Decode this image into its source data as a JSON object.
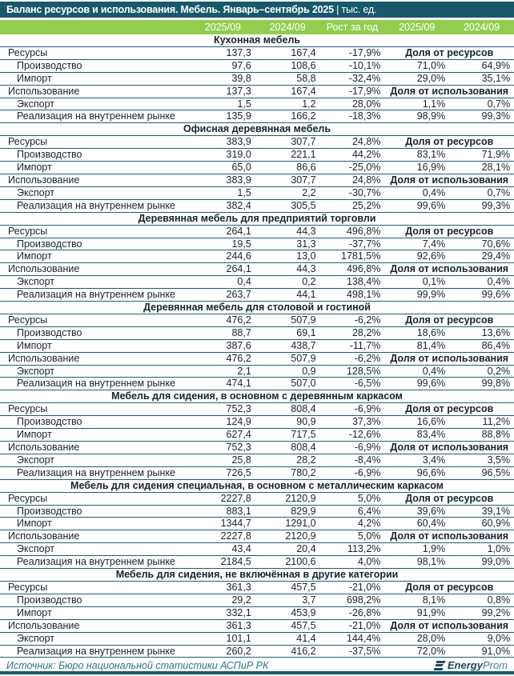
{
  "title": "Баланс ресурсов и использования. Мебель. Январь–сентябрь 2025",
  "title_units": "| тыс. ед.",
  "columns": [
    "2025/09",
    "2024/09",
    "Рост за год",
    "2025/09",
    "2024/09"
  ],
  "sections": [
    {
      "name": "Кухонная мебель",
      "rows": [
        {
          "label": "Ресурсы",
          "indent": false,
          "values": [
            "137,3",
            "167,4",
            "-17,9%"
          ],
          "span": "Доля от ресурсов"
        },
        {
          "label": "Производство",
          "indent": true,
          "values": [
            "97,6",
            "108,6",
            "-10,1%",
            "71,0%",
            "64,9%"
          ]
        },
        {
          "label": "Импорт",
          "indent": true,
          "values": [
            "39,8",
            "58,8",
            "-32,4%",
            "29,0%",
            "35,1%"
          ]
        },
        {
          "label": "Использование",
          "indent": false,
          "values": [
            "137,3",
            "167,4",
            "-17,9%"
          ],
          "span": "Доля от использования"
        },
        {
          "label": "Экспорт",
          "indent": true,
          "values": [
            "1,5",
            "1,2",
            "28,0%",
            "1,1%",
            "0,7%"
          ]
        },
        {
          "label": "Реализация на внутреннем рынке",
          "indent": true,
          "values": [
            "135,9",
            "166,2",
            "-18,3%",
            "98,9%",
            "99,3%"
          ]
        }
      ]
    },
    {
      "name": "Офисная деревянная мебель",
      "rows": [
        {
          "label": "Ресурсы",
          "indent": false,
          "values": [
            "383,9",
            "307,7",
            "24,8%"
          ],
          "span": "Доля от ресурсов"
        },
        {
          "label": "Производство",
          "indent": true,
          "values": [
            "319,0",
            "221,1",
            "44,2%",
            "83,1%",
            "71,9%"
          ]
        },
        {
          "label": "Импорт",
          "indent": true,
          "values": [
            "65,0",
            "86,6",
            "-25,0%",
            "16,9%",
            "28,1%"
          ]
        },
        {
          "label": "Использование",
          "indent": false,
          "values": [
            "383,9",
            "307,7",
            "24,8%"
          ],
          "span": "Доля от использования"
        },
        {
          "label": "Экспорт",
          "indent": true,
          "values": [
            "1,5",
            "2,2",
            "-30,7%",
            "0,4%",
            "0,7%"
          ]
        },
        {
          "label": "Реализация на внутреннем рынке",
          "indent": true,
          "values": [
            "382,4",
            "305,5",
            "25,2%",
            "99,6%",
            "99,3%"
          ]
        }
      ]
    },
    {
      "name": "Деревянная мебель для предприятий торговли",
      "rows": [
        {
          "label": "Ресурсы",
          "indent": false,
          "values": [
            "264,1",
            "44,3",
            "496,8%"
          ],
          "span": "Доля от ресурсов"
        },
        {
          "label": "Производство",
          "indent": true,
          "values": [
            "19,5",
            "31,3",
            "-37,7%",
            "7,4%",
            "70,6%"
          ]
        },
        {
          "label": "Импорт",
          "indent": true,
          "values": [
            "244,6",
            "13,0",
            "1781,5%",
            "92,6%",
            "29,4%"
          ]
        },
        {
          "label": "Использование",
          "indent": false,
          "values": [
            "264,1",
            "44,3",
            "496,8%"
          ],
          "span": "Доля от использования"
        },
        {
          "label": "Экспорт",
          "indent": true,
          "values": [
            "0,4",
            "0,2",
            "138,4%",
            "0,1%",
            "0,4%"
          ]
        },
        {
          "label": "Реализация на внутреннем рынке",
          "indent": true,
          "values": [
            "263,7",
            "44,1",
            "498,1%",
            "99,9%",
            "99,6%"
          ]
        }
      ]
    },
    {
      "name": "Деревянная мебель для столовой и гостиной",
      "rows": [
        {
          "label": "Ресурсы",
          "indent": false,
          "values": [
            "476,2",
            "507,9",
            "-6,2%"
          ],
          "span": "Доля от ресурсов"
        },
        {
          "label": "Производство",
          "indent": true,
          "values": [
            "88,7",
            "69,1",
            "28,2%",
            "18,6%",
            "13,6%"
          ]
        },
        {
          "label": "Импорт",
          "indent": true,
          "values": [
            "387,6",
            "438,7",
            "-11,7%",
            "81,4%",
            "86,4%"
          ]
        },
        {
          "label": "Использование",
          "indent": false,
          "values": [
            "476,2",
            "507,9",
            "-6,2%"
          ],
          "span": "Доля от использования"
        },
        {
          "label": "Экспорт",
          "indent": true,
          "values": [
            "2,1",
            "0,9",
            "128,5%",
            "0,4%",
            "0,2%"
          ]
        },
        {
          "label": "Реализация на внутреннем рынке",
          "indent": true,
          "values": [
            "474,1",
            "507,0",
            "-6,5%",
            "99,6%",
            "99,8%"
          ]
        }
      ]
    },
    {
      "name": "Мебель для сидения, в основном с деревянным каркасом",
      "rows": [
        {
          "label": "Ресурсы",
          "indent": false,
          "values": [
            "752,3",
            "808,4",
            "-6,9%"
          ],
          "span": "Доля от ресурсов"
        },
        {
          "label": "Производство",
          "indent": true,
          "values": [
            "124,9",
            "90,9",
            "37,3%",
            "16,6%",
            "11,2%"
          ]
        },
        {
          "label": "Импорт",
          "indent": true,
          "values": [
            "627,4",
            "717,5",
            "-12,6%",
            "83,4%",
            "88,8%"
          ]
        },
        {
          "label": "Использование",
          "indent": false,
          "values": [
            "752,3",
            "808,4",
            "-6,9%"
          ],
          "span": "Доля от использования"
        },
        {
          "label": "Экспорт",
          "indent": true,
          "values": [
            "25,8",
            "28,2",
            "-8,4%",
            "3,4%",
            "3,5%"
          ]
        },
        {
          "label": "Реализация на внутреннем рынке",
          "indent": true,
          "values": [
            "726,5",
            "780,2",
            "-6,9%",
            "96,6%",
            "96,5%"
          ]
        }
      ]
    },
    {
      "name": "Мебель для сидения специальная, в основном с металлическим каркасом",
      "rows": [
        {
          "label": "Ресурсы",
          "indent": false,
          "values": [
            "2227,8",
            "2120,9",
            "5,0%"
          ],
          "span": "Доля от ресурсов"
        },
        {
          "label": "Производство",
          "indent": true,
          "values": [
            "883,1",
            "829,9",
            "6,4%",
            "39,6%",
            "39,1%"
          ]
        },
        {
          "label": "Импорт",
          "indent": true,
          "values": [
            "1344,7",
            "1291,0",
            "4,2%",
            "60,4%",
            "60,9%"
          ]
        },
        {
          "label": "Использование",
          "indent": false,
          "values": [
            "2227,8",
            "2120,9",
            "5,0%"
          ],
          "span": "Доля от использования"
        },
        {
          "label": "Экспорт",
          "indent": true,
          "values": [
            "43,4",
            "20,4",
            "113,2%",
            "1,9%",
            "1,0%"
          ]
        },
        {
          "label": "Реализация на внутреннем рынке",
          "indent": true,
          "values": [
            "2184,5",
            "2100,6",
            "4,0%",
            "98,1%",
            "99,0%"
          ]
        }
      ]
    },
    {
      "name": "Мебель для сидения, не включённая в другие категории",
      "rows": [
        {
          "label": "Ресурсы",
          "indent": false,
          "values": [
            "361,3",
            "457,5",
            "-21,0%"
          ],
          "span": "Доля от ресурсов"
        },
        {
          "label": "Производство",
          "indent": true,
          "values": [
            "29,2",
            "3,7",
            "698,2%",
            "8,1%",
            "0,8%"
          ]
        },
        {
          "label": "Импорт",
          "indent": true,
          "values": [
            "332,1",
            "453,9",
            "-26,8%",
            "91,9%",
            "99,2%"
          ]
        },
        {
          "label": "Использование",
          "indent": false,
          "values": [
            "361,3",
            "457,5",
            "-21,0%"
          ],
          "span": "Доля от использования"
        },
        {
          "label": "Экспорт",
          "indent": true,
          "values": [
            "101,1",
            "41,4",
            "144,4%",
            "28,0%",
            "9,0%"
          ]
        },
        {
          "label": "Реализация на внутреннем рынке",
          "indent": true,
          "values": [
            "260,2",
            "416,2",
            "-37,5%",
            "72,0%",
            "91,0%"
          ]
        }
      ]
    }
  ],
  "footer": {
    "source": "Источник: Бюро национальной статистики АСПиР РК",
    "logo_energy": "Energy",
    "logo_prom": "Prom"
  },
  "colors": {
    "title_bg": "#17596A",
    "header_bg": "#93CD50",
    "border": "#21606F",
    "footer_text": "#2A7485",
    "bottom_bar": "#17596A"
  }
}
